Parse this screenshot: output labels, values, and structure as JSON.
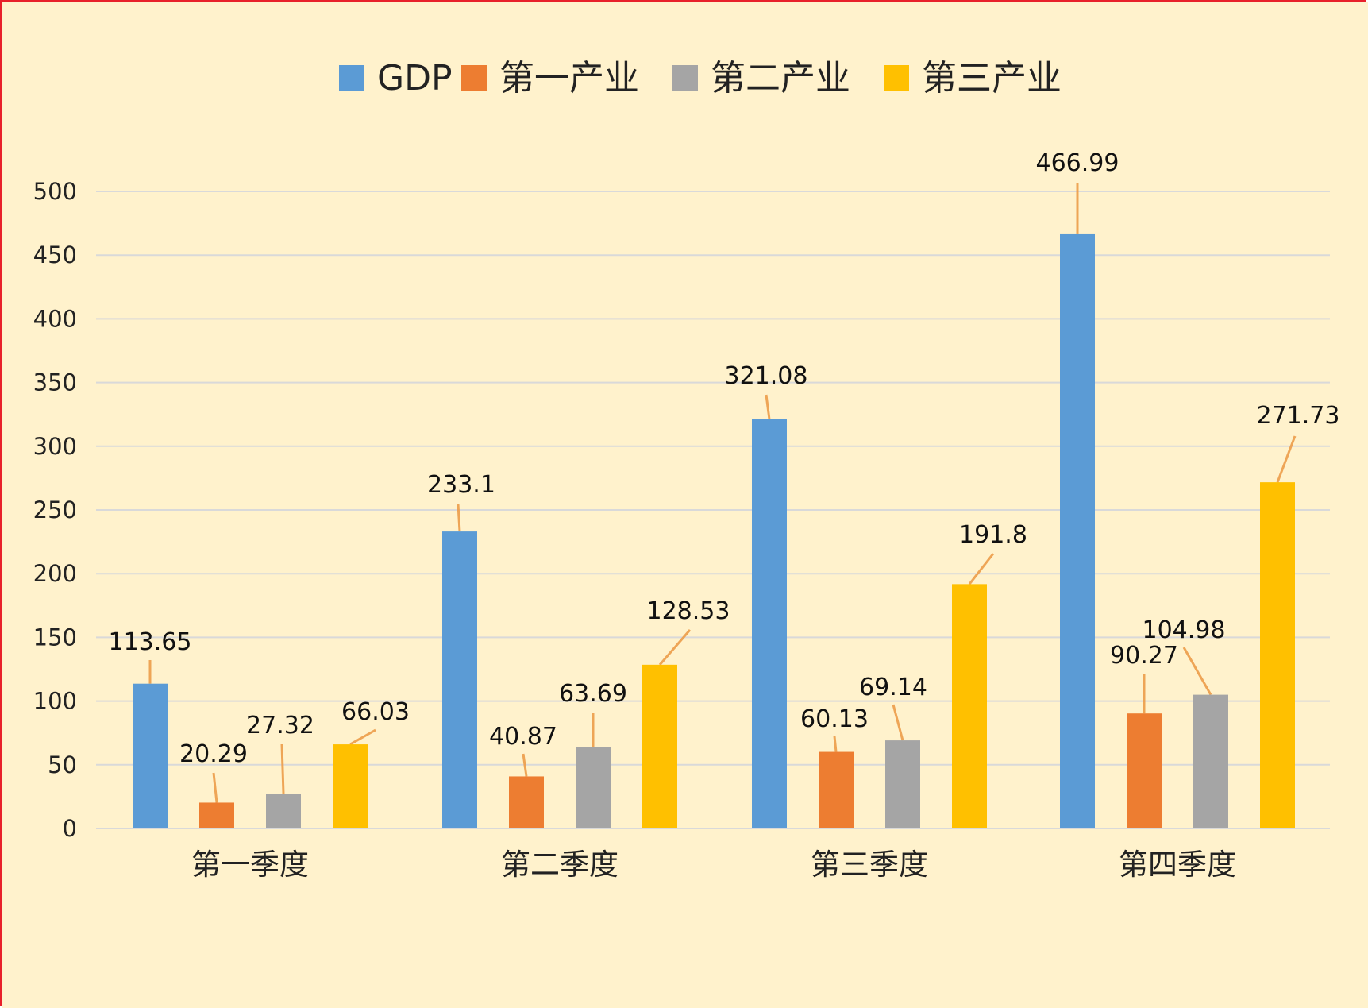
{
  "colors": {
    "background": "#FFF2CC",
    "frame_border": "#E8202A",
    "gridline": "#D9D9D9",
    "leader_line": "#ED9D4A"
  },
  "chart_data": {
    "type": "bar",
    "title": "",
    "xlabel": "",
    "ylabel": "",
    "categories": [
      "第一季度",
      "第二季度",
      "第三季度",
      "第四季度"
    ],
    "series": [
      {
        "name": "GDP",
        "color": "#5B9BD5",
        "values": [
          113.65,
          233.1,
          321.08,
          466.99
        ]
      },
      {
        "name": "第一产业",
        "color": "#ED7D31",
        "values": [
          20.29,
          40.87,
          60.13,
          90.27
        ]
      },
      {
        "name": "第二产业",
        "color": "#A5A5A5",
        "values": [
          27.32,
          63.69,
          69.14,
          104.98
        ]
      },
      {
        "name": "第三产业",
        "color": "#FFC000",
        "values": [
          66.03,
          128.53,
          191.8,
          271.73
        ]
      }
    ],
    "ylim": [
      0,
      500
    ],
    "yticks": [
      0,
      50,
      100,
      150,
      200,
      250,
      300,
      350,
      400,
      450,
      500
    ],
    "grid": true,
    "legend_position": "top-center",
    "data_labels": true
  }
}
